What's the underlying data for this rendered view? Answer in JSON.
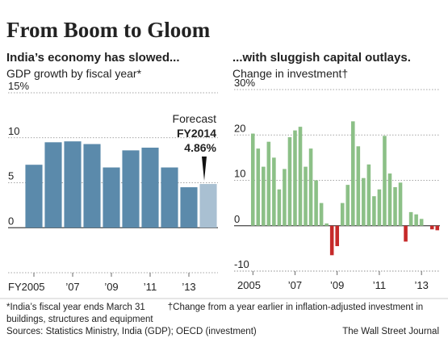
{
  "title": "From Boom to Gloom",
  "notes": [
    "*India’s fiscal year ends March 31",
    "†Change from a year earlier in inflation-adjusted investment in buildings, structures and equipment"
  ],
  "source": "Sources: Statistics Ministry, India (GDP); OECD (investment)",
  "credit": "The Wall Street Journal",
  "chart_data": [
    {
      "type": "bar",
      "title": "India’s economy has slowed...",
      "subtitle": "GDP growth by fiscal year*",
      "categories": [
        "FY2005",
        null,
        "’07",
        null,
        "’09",
        null,
        "’11",
        null,
        "’13",
        null
      ],
      "values": [
        7.0,
        9.5,
        9.6,
        9.3,
        6.7,
        8.6,
        8.9,
        6.7,
        4.5,
        4.86
      ],
      "value_labels": [
        null,
        null,
        null,
        null,
        null,
        null,
        null,
        null,
        null,
        "4.86%"
      ],
      "colors": [
        "#5b8aab",
        "#5b8aab",
        "#5b8aab",
        "#5b8aab",
        "#5b8aab",
        "#5b8aab",
        "#5b8aab",
        "#5b8aab",
        "#5b8aab",
        "#a9c0d2"
      ],
      "annotation": [
        "Forecast",
        "FY2014"
      ],
      "ylim": [
        -5,
        15
      ],
      "yticks": [
        {
          "value": 15,
          "label": "15%"
        },
        10,
        5,
        0
      ],
      "grid": true
    },
    {
      "type": "bar",
      "title": "...with sluggish capital outlays.",
      "subtitle": "Change in investment†",
      "categories": [
        "2005",
        null,
        null,
        null,
        null,
        null,
        null,
        null,
        "’07",
        null,
        null,
        null,
        null,
        null,
        null,
        null,
        "’09",
        null,
        null,
        null,
        null,
        null,
        null,
        null,
        "’11",
        null,
        null,
        null,
        null,
        null,
        null,
        null,
        "’13",
        null,
        null,
        null
      ],
      "values": [
        20.3,
        17,
        13,
        18.5,
        15,
        8,
        12.5,
        19.5,
        21,
        21.8,
        13,
        17,
        10,
        5,
        0.5,
        -6.5,
        -4.5,
        5,
        9,
        23,
        17.5,
        10.5,
        13.5,
        6.5,
        8,
        19.8,
        11.5,
        8.5,
        9.5,
        -3.5,
        3,
        2.5,
        1.5,
        null,
        -0.8,
        -1
      ],
      "color": "#8cc087",
      "negative_color": "#c62a2a",
      "ylim": [
        -10,
        30
      ],
      "yticks": [
        {
          "value": 30,
          "label": "30%"
        },
        20,
        10,
        0,
        -10
      ],
      "grid": true
    }
  ]
}
